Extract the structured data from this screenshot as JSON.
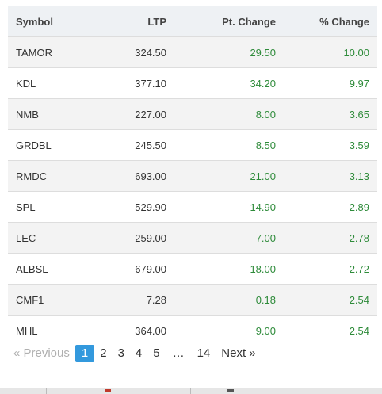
{
  "table": {
    "headers": {
      "symbol": "Symbol",
      "ltp": "LTP",
      "pt_change": "Pt. Change",
      "pct_change": "% Change"
    },
    "rows": [
      {
        "symbol": "TAMOR",
        "ltp": "324.50",
        "pt_change": "29.50",
        "pct_change": "10.00"
      },
      {
        "symbol": "KDL",
        "ltp": "377.10",
        "pt_change": "34.20",
        "pct_change": "9.97"
      },
      {
        "symbol": "NMB",
        "ltp": "227.00",
        "pt_change": "8.00",
        "pct_change": "3.65"
      },
      {
        "symbol": "GRDBL",
        "ltp": "245.50",
        "pt_change": "8.50",
        "pct_change": "3.59"
      },
      {
        "symbol": "RMDC",
        "ltp": "693.00",
        "pt_change": "21.00",
        "pct_change": "3.13"
      },
      {
        "symbol": "SPL",
        "ltp": "529.90",
        "pt_change": "14.90",
        "pct_change": "2.89"
      },
      {
        "symbol": "LEC",
        "ltp": "259.00",
        "pt_change": "7.00",
        "pct_change": "2.78"
      },
      {
        "symbol": "ALBSL",
        "ltp": "679.00",
        "pt_change": "18.00",
        "pct_change": "2.72"
      },
      {
        "symbol": "CMF1",
        "ltp": "7.28",
        "pt_change": "0.18",
        "pct_change": "2.54"
      },
      {
        "symbol": "MHL",
        "ltp": "364.00",
        "pt_change": "9.00",
        "pct_change": "2.54"
      }
    ]
  },
  "pagination": {
    "previous": "« Previous",
    "pages": [
      "1",
      "2",
      "3",
      "4",
      "5"
    ],
    "ellipsis": "…",
    "last": "14",
    "next": "Next »",
    "active": "1"
  },
  "colors": {
    "positive": "#2e8b3a",
    "active_page": "#3399dd",
    "header_bg": "#eef1f4"
  }
}
